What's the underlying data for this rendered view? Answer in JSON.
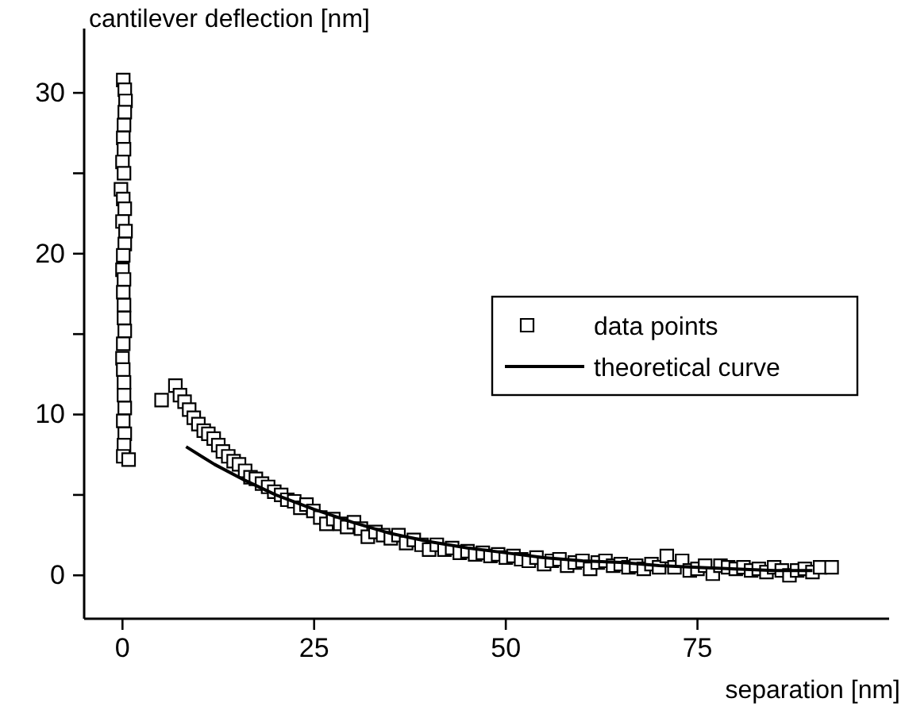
{
  "chart_data": {
    "type": "scatter",
    "xlabel": "separation [nm]",
    "ylabel": "cantilever deflection [nm]",
    "xlim": [
      -5,
      100
    ],
    "ylim": [
      -2.7,
      34
    ],
    "xticks": [
      0,
      25,
      50,
      75
    ],
    "yticks": [
      0,
      {
        "value": 5,
        "label": null
      },
      10,
      {
        "value": 15,
        "label": null
      },
      20,
      {
        "value": 25,
        "label": null
      },
      30
    ],
    "grid": false,
    "legend": "right",
    "series": [
      {
        "name": "data points",
        "marker": "square",
        "color": "#000000",
        "x": [
          0.1,
          0.3,
          0.4,
          0.3,
          0.2,
          0.1,
          0.2,
          0.0,
          0.2,
          -0.2,
          0.1,
          0.3,
          0.0,
          0.4,
          0.3,
          0.1,
          0.0,
          0.2,
          0.1,
          0.2,
          0.2,
          0.3,
          0.1,
          0.0,
          0.1,
          0.2,
          0.2,
          0.3,
          0.1,
          0.3,
          0.2,
          0.1,
          0.8,
          5.1,
          6.9,
          7.5,
          8.1,
          8.7,
          9.3,
          9.9,
          10.6,
          11.2,
          11.9,
          12.5,
          13.1,
          13.8,
          14.5,
          15.2,
          16.0,
          16.7,
          17.4,
          18.2,
          19.0,
          19.8,
          20.7,
          21.5,
          22.4,
          23.2,
          24.0,
          24.9,
          25.8,
          26.6,
          27.5,
          28.4,
          29.3,
          30.2,
          31.1,
          32.0,
          33.0,
          34.0,
          35.0,
          36.0,
          37.0,
          38.0,
          39.0,
          40.0,
          41.0,
          42.0,
          43.0,
          44.0,
          45.0,
          46.0,
          47.0,
          48.0,
          49.0,
          50.0,
          51.0,
          52.0,
          53.0,
          54.0,
          55.0,
          56.0,
          57.0,
          58.0,
          59.0,
          60.0,
          61.0,
          62.0,
          63.0,
          64.0,
          65.0,
          66.0,
          67.0,
          68.0,
          69.0,
          70.0,
          71.0,
          72.0,
          73.0,
          74.0,
          75.0,
          76.0,
          77.0,
          78.0,
          79.0,
          80.0,
          81.0,
          82.0,
          83.0,
          84.0,
          85.0,
          86.0,
          87.0,
          88.0,
          89.0,
          90.0,
          91.0,
          92.5
        ],
        "values": [
          30.8,
          30.2,
          29.5,
          28.8,
          28.0,
          27.2,
          26.5,
          25.7,
          25.0,
          24.0,
          23.4,
          22.8,
          22.0,
          21.4,
          20.6,
          19.9,
          19.0,
          18.4,
          17.6,
          16.8,
          16.0,
          15.2,
          14.4,
          13.5,
          12.8,
          12.0,
          11.2,
          10.4,
          9.6,
          8.8,
          8.1,
          7.4,
          7.2,
          10.9,
          11.8,
          11.2,
          10.8,
          10.3,
          9.8,
          9.4,
          9.0,
          8.8,
          8.5,
          8.1,
          7.7,
          7.4,
          7.1,
          6.9,
          6.5,
          6.1,
          6.0,
          5.7,
          5.5,
          5.2,
          5.0,
          4.7,
          4.6,
          4.2,
          4.4,
          4.0,
          3.6,
          3.2,
          3.5,
          3.2,
          3.0,
          3.3,
          2.9,
          2.4,
          2.7,
          2.5,
          2.3,
          2.5,
          2.0,
          2.2,
          1.9,
          1.6,
          1.9,
          1.6,
          1.7,
          1.4,
          1.5,
          1.3,
          1.4,
          1.2,
          1.3,
          1.1,
          1.2,
          1.0,
          0.9,
          1.1,
          0.7,
          0.9,
          1.0,
          0.6,
          0.8,
          0.9,
          0.4,
          0.8,
          0.9,
          0.6,
          0.7,
          0.5,
          0.6,
          0.4,
          0.7,
          0.5,
          1.2,
          0.5,
          0.9,
          0.3,
          0.4,
          0.6,
          0.1,
          0.6,
          0.5,
          0.4,
          0.5,
          0.3,
          0.4,
          0.2,
          0.5,
          0.3,
          0.0,
          0.3,
          0.4,
          0.2,
          0.5,
          0.5
        ]
      },
      {
        "name": "theoretical curve",
        "type": "line",
        "marker": "none",
        "line_style": "solid",
        "color": "#000000",
        "x": [
          8.3,
          12,
          16,
          20,
          25,
          30,
          35,
          40,
          45,
          50,
          55,
          60,
          65,
          70,
          75,
          80,
          85,
          90
        ],
        "values": [
          8.0,
          6.9,
          5.9,
          5.0,
          4.1,
          3.3,
          2.6,
          2.1,
          1.7,
          1.4,
          1.1,
          0.9,
          0.8,
          0.6,
          0.5,
          0.4,
          0.3,
          0.3
        ]
      }
    ]
  }
}
